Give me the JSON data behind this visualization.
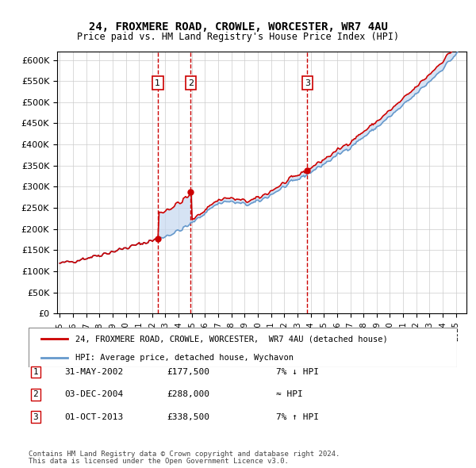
{
  "title": "24, FROXMERE ROAD, CROWLE, WORCESTER, WR7 4AU",
  "subtitle": "Price paid vs. HM Land Registry's House Price Index (HPI)",
  "ylabel": "",
  "xlabel": "",
  "ylim": [
    0,
    620000
  ],
  "yticks": [
    0,
    50000,
    100000,
    150000,
    200000,
    250000,
    300000,
    350000,
    400000,
    450000,
    500000,
    550000,
    600000
  ],
  "ytick_labels": [
    "£0",
    "£50K",
    "£100K",
    "£150K",
    "£200K",
    "£250K",
    "£300K",
    "£350K",
    "£400K",
    "£450K",
    "£500K",
    "£550K",
    "£600K"
  ],
  "sale_dates_num": [
    2002.41,
    2004.92,
    2013.75
  ],
  "sale_prices": [
    177500,
    288000,
    338500
  ],
  "sale_labels": [
    "1",
    "2",
    "3"
  ],
  "red_line_color": "#cc0000",
  "blue_line_color": "#6699cc",
  "blue_fill_color": "#c5d8f0",
  "vline_color": "#cc0000",
  "background_color": "#ffffff",
  "grid_color": "#cccccc",
  "legend_line1": "24, FROXMERE ROAD, CROWLE, WORCESTER,  WR7 4AU (detached house)",
  "legend_line2": "HPI: Average price, detached house, Wychavon",
  "table_rows": [
    [
      "1",
      "31-MAY-2002",
      "£177,500",
      "7% ↓ HPI"
    ],
    [
      "2",
      "03-DEC-2004",
      "£288,000",
      "≈ HPI"
    ],
    [
      "3",
      "01-OCT-2013",
      "£338,500",
      "7% ↑ HPI"
    ]
  ],
  "footnote1": "Contains HM Land Registry data © Crown copyright and database right 2024.",
  "footnote2": "This data is licensed under the Open Government Licence v3.0."
}
